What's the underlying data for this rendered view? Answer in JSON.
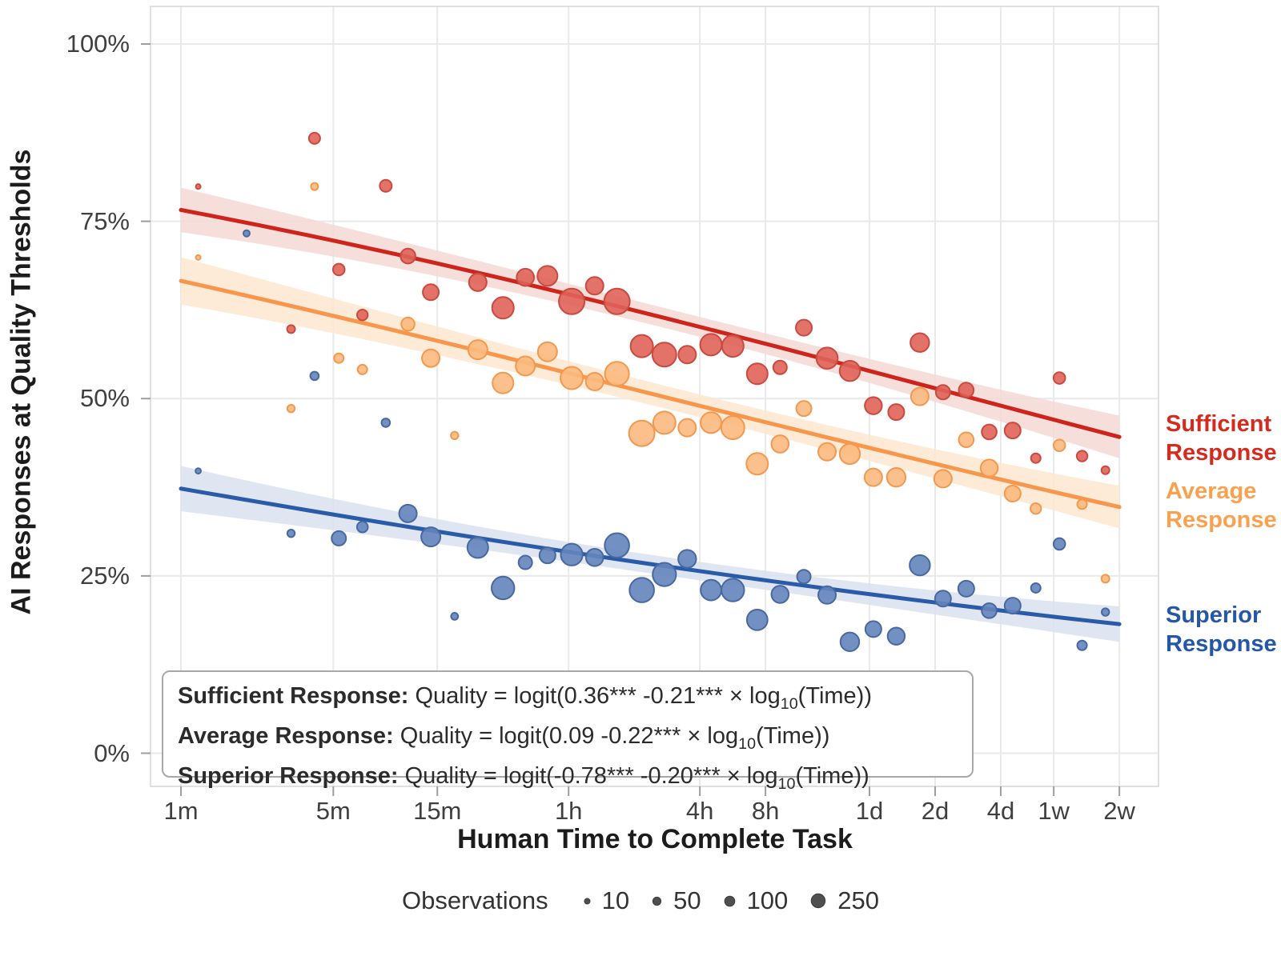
{
  "y_axis_title": "AI Responses at Quality Thresholds",
  "x_axis_title": "Human Time to Complete Task",
  "series_labels": {
    "sufficient": {
      "line1": "Sufficient",
      "line2": "Response",
      "color": "#D52B1E"
    },
    "average": {
      "line1": "Average",
      "line2": "Response",
      "color": "#F9A14F"
    },
    "superior": {
      "line1": "Superior",
      "line2": "Response",
      "color": "#2457A7"
    }
  },
  "annotation": {
    "lines": [
      {
        "name": "Sufficient Response:",
        "pre": " Quality = logit(0.36*** -0.21*** × log",
        "sub": "10",
        "post": "(Time))"
      },
      {
        "name": "Average Response:",
        "pre": " Quality = logit(0.09 -0.22*** × log",
        "sub": "10",
        "post": "(Time))"
      },
      {
        "name": "Superior Response:",
        "pre": " Quality = logit(-0.78*** -0.20*** × log",
        "sub": "10",
        "post": "(Time))"
      }
    ]
  },
  "legend": {
    "title": "Observations",
    "items": [
      {
        "label": "10",
        "n": 10
      },
      {
        "label": "50",
        "n": 50
      },
      {
        "label": "100",
        "n": 100
      },
      {
        "label": "250",
        "n": 250
      }
    ],
    "dot_color": "#4f4f4f",
    "dot_stroke": "#3a3a3a"
  },
  "chart_data": {
    "type": "scatter",
    "title": "",
    "xlabel": "Human Time to Complete Task",
    "ylabel": "AI Responses at Quality Thresholds",
    "x_scale": "log10(minutes)",
    "ylim": [
      0,
      100
    ],
    "grid": true,
    "y_ticks": [
      {
        "label": "0%",
        "value": 0
      },
      {
        "label": "25%",
        "value": 25
      },
      {
        "label": "50%",
        "value": 50
      },
      {
        "label": "75%",
        "value": 75
      },
      {
        "label": "100%",
        "value": 100
      }
    ],
    "x_ticks": [
      {
        "label": "1m",
        "minutes": 1
      },
      {
        "label": "5m",
        "minutes": 5
      },
      {
        "label": "15m",
        "minutes": 15
      },
      {
        "label": "1h",
        "minutes": 60
      },
      {
        "label": "4h",
        "minutes": 240
      },
      {
        "label": "8h",
        "minutes": 480
      },
      {
        "label": "1d",
        "minutes": 1440
      },
      {
        "label": "2d",
        "minutes": 2880
      },
      {
        "label": "4d",
        "minutes": 5760
      },
      {
        "label": "1w",
        "minutes": 10080
      },
      {
        "label": "2w",
        "minutes": 20160
      }
    ],
    "point_columns": [
      "time_minutes",
      "percent",
      "radius_px"
    ],
    "size_encodes": "observations (see legend: 10, 50, 100, 250)",
    "series": [
      {
        "name": "Sufficient Response",
        "line_color": "#CE241B",
        "point_fill": "#E06358",
        "point_stroke": "#C94A40",
        "band_color": "#F5D9D5",
        "trend_logit": {
          "a": 1.186,
          "b": -0.326
        },
        "band_halfwidth": {
          "mid": 1.4,
          "k_left": 0.33,
          "k_right": 0.4,
          "center_L": 2.3
        },
        "points": [
          [
            1.2,
            79.9,
            3
          ],
          [
            4.1,
            86.7,
            7
          ],
          [
            3.2,
            59.8,
            5
          ],
          [
            5.3,
            68.2,
            7.3
          ],
          [
            6.8,
            61.8,
            6.7
          ],
          [
            8.7,
            80.0,
            7.5
          ],
          [
            11,
            70.1,
            9.3
          ],
          [
            14,
            65.0,
            10
          ],
          [
            23,
            66.4,
            11
          ],
          [
            30,
            62.8,
            13.5
          ],
          [
            38,
            67.1,
            10.8
          ],
          [
            48,
            67.3,
            12.5
          ],
          [
            62,
            63.7,
            16
          ],
          [
            79,
            65.9,
            11
          ],
          [
            100,
            63.7,
            16
          ],
          [
            130,
            57.4,
            14
          ],
          [
            165,
            56.2,
            15
          ],
          [
            210,
            56.2,
            11
          ],
          [
            270,
            57.6,
            13.5
          ],
          [
            340,
            57.4,
            13.5
          ],
          [
            440,
            53.5,
            13
          ],
          [
            560,
            54.4,
            8.5
          ],
          [
            720,
            60.0,
            10
          ],
          [
            920,
            55.7,
            13.3
          ],
          [
            1170,
            53.9,
            12.7
          ],
          [
            1500,
            49.0,
            10.7
          ],
          [
            1910,
            48.1,
            10
          ],
          [
            2450,
            57.9,
            11.7
          ],
          [
            3130,
            50.9,
            9
          ],
          [
            4000,
            51.2,
            9.3
          ],
          [
            5100,
            45.3,
            9.3
          ],
          [
            6530,
            45.5,
            10
          ],
          [
            8340,
            41.6,
            6
          ],
          [
            10700,
            52.9,
            7.3
          ],
          [
            13600,
            41.9,
            6.7
          ],
          [
            17400,
            39.9,
            5
          ]
        ]
      },
      {
        "name": "Average Response",
        "line_color": "#F8964B",
        "point_fill": "#FBB97E",
        "point_stroke": "#F2994F",
        "band_color": "#FDE8D0",
        "trend_logit": {
          "a": 0.69,
          "b": -0.307
        },
        "band_halfwidth": {
          "mid": 1.6,
          "k_left": 0.33,
          "k_right": 0.35,
          "center_L": 2.3
        },
        "points": [
          [
            1.2,
            69.9,
            3
          ],
          [
            3.2,
            48.6,
            4.7
          ],
          [
            4.1,
            79.9,
            4.5
          ],
          [
            5.3,
            55.7,
            6
          ],
          [
            6.8,
            54.1,
            6
          ],
          [
            11,
            60.5,
            8.3
          ],
          [
            14,
            55.7,
            11
          ],
          [
            18,
            44.8,
            4.7
          ],
          [
            23,
            56.9,
            12
          ],
          [
            30,
            52.2,
            13
          ],
          [
            38,
            54.6,
            12
          ],
          [
            48,
            56.6,
            12
          ],
          [
            62,
            52.9,
            14
          ],
          [
            79,
            52.4,
            11
          ],
          [
            100,
            53.5,
            15
          ],
          [
            130,
            45.1,
            16
          ],
          [
            165,
            46.6,
            14
          ],
          [
            210,
            45.9,
            11
          ],
          [
            270,
            46.6,
            13
          ],
          [
            340,
            45.9,
            14.5
          ],
          [
            440,
            40.8,
            13.5
          ],
          [
            560,
            43.6,
            10.8
          ],
          [
            720,
            48.6,
            9.5
          ],
          [
            920,
            42.5,
            11
          ],
          [
            1170,
            42.2,
            12.7
          ],
          [
            1500,
            38.9,
            11
          ],
          [
            1910,
            38.9,
            11.7
          ],
          [
            2450,
            50.3,
            11
          ],
          [
            3130,
            38.7,
            11
          ],
          [
            4000,
            44.2,
            9.3
          ],
          [
            5100,
            40.2,
            10.7
          ],
          [
            6530,
            36.6,
            10
          ],
          [
            8340,
            34.5,
            6.7
          ],
          [
            10700,
            43.4,
            7.3
          ],
          [
            13600,
            35.1,
            6
          ],
          [
            17400,
            24.6,
            5
          ]
        ]
      },
      {
        "name": "Superior Response",
        "line_color": "#2A5BA8",
        "point_fill": "#6484BD",
        "point_stroke": "#48699F",
        "band_color": "#D9E2F0",
        "trend_logit": {
          "a": -0.519,
          "b": -0.2286
        },
        "band_halfwidth": {
          "mid": 1.3,
          "k_left": 0.36,
          "k_right": 0.3,
          "center_L": 2.3
        },
        "points": [
          [
            1.2,
            39.8,
            3.4
          ],
          [
            2.0,
            73.3,
            4
          ],
          [
            3.2,
            31.0,
            4.7
          ],
          [
            4.1,
            53.2,
            5.3
          ],
          [
            5.3,
            30.3,
            9
          ],
          [
            6.8,
            31.9,
            6.8
          ],
          [
            8.7,
            46.6,
            5.3
          ],
          [
            11,
            33.8,
            11
          ],
          [
            14,
            30.5,
            12
          ],
          [
            18,
            19.3,
            4.4
          ],
          [
            23,
            29.0,
            13
          ],
          [
            30,
            23.3,
            14.2
          ],
          [
            38,
            26.9,
            8.5
          ],
          [
            48,
            27.9,
            10
          ],
          [
            62,
            28.0,
            13.6
          ],
          [
            79,
            27.6,
            10.8
          ],
          [
            100,
            29.3,
            15.3
          ],
          [
            130,
            23.0,
            15.3
          ],
          [
            165,
            25.2,
            14.6
          ],
          [
            210,
            27.4,
            11.2
          ],
          [
            270,
            23.0,
            12.9
          ],
          [
            340,
            23.0,
            14.2
          ],
          [
            440,
            18.8,
            12.9
          ],
          [
            560,
            22.4,
            10.8
          ],
          [
            720,
            24.9,
            8.5
          ],
          [
            920,
            22.3,
            11
          ],
          [
            1170,
            15.7,
            11.7
          ],
          [
            1500,
            17.5,
            10
          ],
          [
            1910,
            16.5,
            10.7
          ],
          [
            2450,
            26.5,
            12.7
          ],
          [
            3130,
            21.8,
            10
          ],
          [
            4000,
            23.2,
            10
          ],
          [
            5100,
            20.1,
            9.3
          ],
          [
            6530,
            20.8,
            10
          ],
          [
            8340,
            23.3,
            6
          ],
          [
            10700,
            29.5,
            7.3
          ],
          [
            13600,
            15.2,
            6
          ],
          [
            17400,
            19.9,
            4.7
          ]
        ]
      }
    ]
  }
}
